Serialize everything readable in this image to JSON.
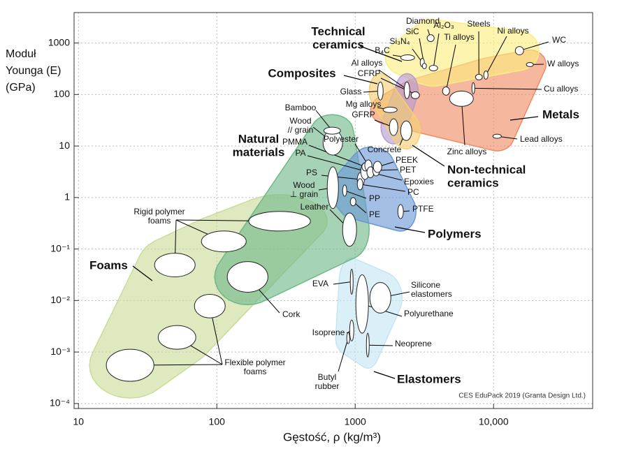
{
  "chart_data": {
    "type": "ashby",
    "ylabel": [
      "Moduł",
      "Younga (E)",
      "(GPa)"
    ],
    "xlabel": "Gęstość, ρ  (kg/m³)",
    "credit": "CES EduPack 2019 (Granta Design Ltd.)",
    "xscale": "log",
    "yscale": "log",
    "grid": true,
    "xlim": [
      9.3,
      52000
    ],
    "ylim": [
      8e-05,
      3900
    ],
    "xticks": [
      10,
      100,
      1000,
      {
        "value": 10000,
        "label": "10,000"
      }
    ],
    "yticks": [
      {
        "value": 0.0001,
        "label": "10⁻⁴"
      },
      {
        "value": 0.001,
        "label": "10⁻³"
      },
      {
        "value": 0.01,
        "label": "10⁻²"
      },
      {
        "value": 0.1,
        "label": "10⁻¹"
      },
      1,
      10,
      100,
      1000
    ],
    "families": [
      {
        "name": [
          "Foams"
        ],
        "color": "#c9dc98",
        "members": [
          {
            "name": [
              "Rigid polymer",
              "foams"
            ],
            "x": [
              35.5,
              69.7
            ],
            "y": [
              0.0288,
              0.083
            ]
          },
          {
            "name": null,
            "x": [
              77.4,
              163
            ],
            "y": [
              0.088,
              0.224
            ]
          },
          {
            "name": null,
            "x": [
              170,
              475
            ],
            "y": [
              0.224,
              0.537
            ]
          },
          {
            "name": [
              "Flexible polymer",
              "foams"
            ],
            "x": [
              15.9,
              35.1
            ],
            "y": [
              0.00027,
              0.00113
            ]
          },
          {
            "name": null,
            "x": [
              37.7,
              70.5
            ],
            "y": [
              0.00113,
              0.00327
            ]
          },
          {
            "name": null,
            "x": [
              68.9,
              115
            ],
            "y": [
              0.0046,
              0.0132
            ]
          }
        ]
      },
      {
        "name": [
          "Elastomers"
        ],
        "color": "#c4e5f4",
        "members": [
          {
            "name": [
              "EVA"
            ],
            "x": [
              922,
              966
            ],
            "y": [
              0.0132,
              0.0405
            ]
          },
          {
            "name": [
              "Polyurethane"
            ],
            "x": [
              1011,
              1247
            ],
            "y": [
              0.00232,
              0.0316
            ]
          },
          {
            "name": [
              "Silicone",
              "elastomers"
            ],
            "x": [
              1276,
              1811
            ],
            "y": [
              0.0057,
              0.0224
            ]
          },
          {
            "name": [
              "Isoprene"
            ],
            "x": [
              912,
              977
            ],
            "y": [
              0.00164,
              0.00419
            ]
          },
          {
            "name": [
              "Neoprene"
            ],
            "x": [
              1205,
              1262
            ],
            "y": [
              0.0008,
              0.00232
            ]
          },
          {
            "name": [
              "Butyl",
              "rubber"
            ],
            "x": [
              869,
              912
            ],
            "y": [
              0.00145,
              0.00239
            ]
          }
        ]
      },
      {
        "name": [
          "Natural",
          "materials"
        ],
        "color": "#6fb889",
        "members": [
          {
            "name": [
              "Cork"
            ],
            "x": [
              119,
              234
            ],
            "y": [
              0.0145,
              0.057
            ]
          },
          {
            "name": [
              "Leather"
            ],
            "x": [
              811,
              1023
            ],
            "y": [
              0.113,
              0.5
            ]
          },
          {
            "name": [
              "Wood",
              "⊥ grain"
            ],
            "x": [
              628,
              757
            ],
            "y": [
              0.61,
              3.94
            ]
          },
          {
            "name": [
              "Wood",
              "// grain"
            ],
            "x": [
              586,
              811
            ],
            "y": [
              6.67,
              20.5
            ]
          },
          {
            "name": [
              "Bamboo"
            ],
            "x": [
              593,
              783
            ],
            "y": [
              17.0,
              23.2
            ]
          }
        ]
      },
      {
        "name": [
          "Polymers"
        ],
        "color": "#6a98d6",
        "members": [
          {
            "name": [
              "PTFE"
            ],
            "x": [
              2032,
              2230
            ],
            "y": [
              0.39,
              0.73
            ]
          },
          {
            "name": [
              "PE"
            ],
            "x": [
              922,
              1011
            ],
            "y": [
              0.69,
              1.0
            ]
          },
          {
            "name": [
              "PP"
            ],
            "x": [
              811,
              869
            ],
            "y": [
              1.06,
              1.75
            ]
          },
          {
            "name": [
              "PS"
            ],
            "x": [
              1035,
              1164
            ],
            "y": [
              1.64,
              3.06
            ]
          },
          {
            "name": [
              "PA"
            ],
            "x": [
              1097,
              1262
            ],
            "y": [
              2.24,
              4.74
            ]
          },
          {
            "name": [
              "PMMA"
            ],
            "x": [
              1118,
              1262
            ],
            "y": [
              3.27,
              4.74
            ]
          },
          {
            "name": [
              "PC"
            ],
            "x": [
              1035,
              1136
            ],
            "y": [
              1.41,
              2.32
            ]
          },
          {
            "name": [
              "Polyester"
            ],
            "x": [
              1173,
              1320
            ],
            "y": [
              3.27,
              5.37
            ]
          },
          {
            "name": [
              "Epoxies"
            ],
            "x": [
              1215,
              1367
            ],
            "y": [
              2.42,
              3.94
            ]
          },
          {
            "name": [
              "PET"
            ],
            "x": [
              1337,
              1502
            ],
            "y": [
              2.62,
              4.32
            ]
          },
          {
            "name": [
              "PEEK"
            ],
            "x": [
              1353,
              1555
            ],
            "y": [
              3.06,
              5.05
            ]
          }
        ]
      },
      {
        "name": [
          "Metals"
        ],
        "color": "#f08a64",
        "members": [
          {
            "name": [
              "Al alloys"
            ],
            "x": [
              2535,
              2915
            ],
            "y": [
              83,
              113
            ]
          },
          {
            "name": [
              "Mg alloys"
            ],
            "x": [
              1592,
              2010
            ],
            "y": [
              44.6,
              57
            ]
          },
          {
            "name": [
              "Ti alloys"
            ],
            "x": [
              4276,
              4808
            ],
            "y": [
              97,
              141
            ]
          },
          {
            "name": [
              "Steels"
            ],
            "x": [
              7396,
              8299
            ],
            "y": [
              192,
              247
            ]
          },
          {
            "name": [
              "Ni alloys"
            ],
            "x": [
              8492,
              9120
            ],
            "y": [
              198,
              288
            ]
          },
          {
            "name": [
              "Cu alloys"
            ],
            "x": [
              6970,
              7310
            ],
            "y": [
              103,
              170
            ]
          },
          {
            "name": [
              "Zinc alloys"
            ],
            "x": [
              4808,
              7145
            ],
            "y": [
              58.9,
              117
            ]
          },
          {
            "name": [
              "Lead alloys"
            ],
            "x": [
              9886,
              11376
            ],
            "y": [
              14.1,
              17.0
            ]
          },
          {
            "name": [
              "W alloys"
            ],
            "x": [
              17258,
              19409
            ],
            "y": [
              347,
              419
            ]
          }
        ]
      },
      {
        "name": [
          "Technical",
          "ceramics"
        ],
        "color": "#fbee80",
        "members": [
          {
            "name": [
              "B₄C"
            ],
            "x": [
              2131,
              2687
            ],
            "y": [
              459,
              589
            ]
          },
          {
            "name": [
              "Si₃N₄"
            ],
            "x": [
              2950,
              3162
            ],
            "y": [
              347,
              505
            ]
          },
          {
            "name": [
              "SiC"
            ],
            "x": [
              3055,
              3273
            ],
            "y": [
              316,
              405
            ]
          },
          {
            "name": [
              "Diamond"
            ],
            "x": [
              3311,
              3722
            ],
            "y": [
              1064,
              1452
            ]
          },
          {
            "name": [
              "Al₂O₃"
            ],
            "x": [
              3428,
              3945
            ],
            "y": [
              288,
              370
            ]
          },
          {
            "name": [
              "WC"
            ],
            "x": [
              14355,
              16482
            ],
            "y": [
              589,
              855
            ]
          }
        ]
      },
      {
        "name": [
          "Composites"
        ],
        "color": "#b49ad0",
        "members": [
          {
            "name": [
              "CFRP"
            ],
            "x": [
              2259,
              2477
            ],
            "y": [
              83,
              175
            ]
          },
          {
            "name": [
              "GFRP"
            ],
            "x": [
              1767,
              2032
            ],
            "y": [
              16.0,
              33.7
            ]
          }
        ]
      },
      {
        "name": [
          "Non-technical",
          "ceramics"
        ],
        "color": "#f5cf72",
        "members": [
          {
            "name": [
              "Glass"
            ],
            "x": [
              1452,
              1592
            ],
            "y": [
              78,
              175
            ]
          },
          {
            "name": [
              "Concrete"
            ],
            "x": [
              2131,
              2565
            ],
            "y": [
              12.8,
              30.6
            ]
          }
        ]
      }
    ]
  }
}
